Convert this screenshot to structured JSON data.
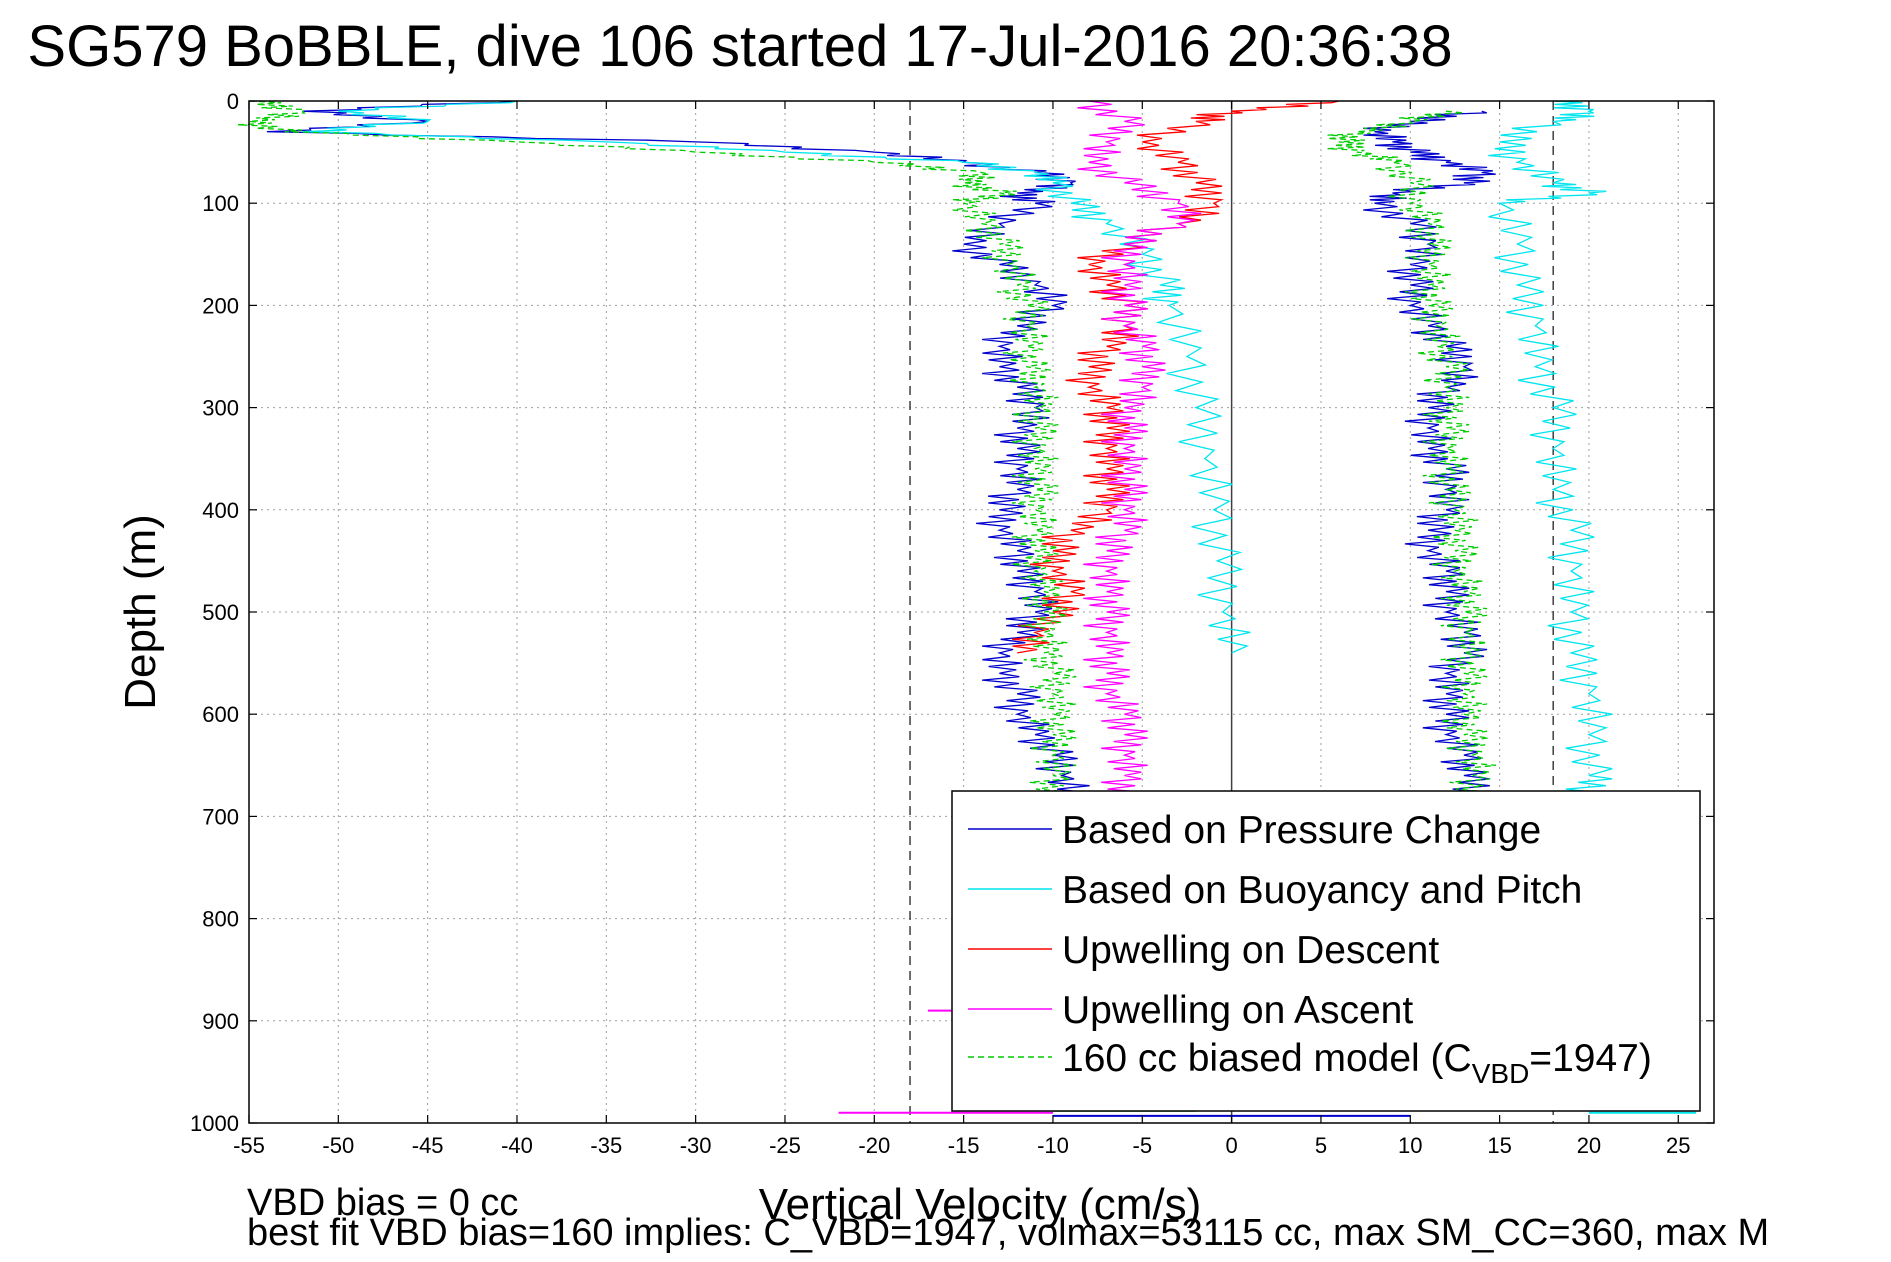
{
  "chart_data": {
    "type": "line",
    "title": "SG579 BoBBLE, dive 106 started 17-Jul-2016 20:36:38",
    "xlabel": "Vertical Velocity (cm/s)",
    "ylabel": "Depth (m)",
    "xlim": [
      -55,
      27
    ],
    "ylim": [
      1000,
      0
    ],
    "y_reversed": true,
    "grid": true,
    "xticks": [
      -55,
      -50,
      -45,
      -40,
      -35,
      -30,
      -25,
      -20,
      -15,
      -10,
      -5,
      0,
      5,
      10,
      15,
      20,
      25
    ],
    "yticks": [
      0,
      100,
      200,
      300,
      400,
      500,
      600,
      700,
      800,
      900,
      1000
    ],
    "legend_position": "bottom-right",
    "reference_lines": [
      -18,
      0,
      18
    ],
    "series": [
      {
        "name": "Based on Pressure Change",
        "color": "#0000cc",
        "style": "solid",
        "segments": [
          {
            "depth": [
              0,
              10,
              20,
              30,
              40,
              50,
              60,
              70,
              80,
              90,
              100,
              120,
              140,
              160,
              180,
              200,
              220,
              240,
              260,
              280,
              300,
              320,
              340,
              360,
              380,
              400,
              420,
              440,
              460,
              480,
              500,
              520,
              540,
              560,
              580,
              600,
              620,
              640,
              660,
              680
            ],
            "velocity": [
              -40,
              -52,
              -45,
              -54,
              -30,
              -20,
              -15,
              -11,
              -9,
              -12,
              -11,
              -13,
              -15,
              -13,
              -11,
              -10,
              -12,
              -13,
              -13,
              -12,
              -11,
              -12,
              -12,
              -12,
              -12,
              -13,
              -13,
              -12,
              -12,
              -11,
              -11,
              -12,
              -13,
              -13,
              -12,
              -12,
              -11,
              -10,
              -9.5,
              -9
            ]
          },
          {
            "depth": [
              10,
              20,
              30,
              40,
              50,
              60,
              70,
              80,
              90,
              100,
              120,
              140,
              160,
              180,
              200,
              220,
              240,
              260,
              280,
              300,
              320,
              340,
              360,
              380,
              400,
              420,
              440,
              460,
              480,
              500,
              520,
              540,
              560,
              580,
              600,
              620,
              640,
              660,
              680
            ],
            "velocity": [
              14,
              10,
              8,
              9,
              10,
              12,
              14,
              13,
              9,
              8,
              10,
              11,
              10,
              10,
              10,
              11,
              12,
              13,
              12,
              11,
              11,
              11,
              12,
              12,
              12,
              11,
              11,
              12,
              12,
              12,
              13,
              13,
              12,
              12,
              12,
              12,
              13,
              13,
              14
            ]
          }
        ]
      },
      {
        "name": "Based on Buoyancy and Pitch",
        "color": "#00e5ee",
        "style": "solid",
        "segments": [
          {
            "depth": [
              0,
              10,
              20,
              30,
              40,
              50,
              60,
              70,
              80,
              100,
              120,
              150,
              180,
              200,
              250,
              300,
              350,
              400,
              450,
              500,
              540
            ],
            "velocity": [
              -40,
              -50,
              -45,
              -52,
              -35,
              -25,
              -15,
              -11,
              -10,
              -9,
              -7,
              -5,
              -4,
              -3.5,
              -2.5,
              -2,
              -1.5,
              -1,
              -0.8,
              -0.5,
              0
            ]
          },
          {
            "depth": [
              0,
              10,
              20,
              40,
              60,
              80,
              90,
              100,
              140,
              180,
              220,
              260,
              300,
              340,
              380,
              420,
              460,
              500,
              540,
              580,
              620,
              660,
              680
            ],
            "velocity": [
              18,
              20,
              18,
              15,
              16,
              18,
              20,
              15,
              16,
              16,
              17,
              17,
              18,
              18,
              18,
              19,
              19,
              19,
              19,
              20,
              20,
              20,
              20
            ]
          }
        ]
      },
      {
        "name": "Upwelling on Descent",
        "color": "#ff0000",
        "style": "solid",
        "segments": [
          {
            "depth": [
              0,
              10,
              20,
              40,
              60,
              80,
              100,
              120,
              140,
              160,
              180,
              200,
              220,
              240,
              260,
              280,
              300,
              320,
              340,
              360,
              380,
              400,
              420,
              440,
              460,
              480,
              500,
              520,
              540
            ],
            "velocity": [
              6,
              0,
              -2,
              -5,
              -3,
              -2,
              -1,
              -3,
              -6,
              -8,
              -7,
              -6,
              -6,
              -7,
              -8,
              -8,
              -7,
              -7,
              -7,
              -7,
              -7,
              -7,
              -9,
              -10,
              -10,
              -9,
              -10,
              -11,
              -12
            ]
          }
        ]
      },
      {
        "name": "Upwelling on Ascent",
        "color": "#ff00ff",
        "style": "solid",
        "segments": [
          {
            "depth": [
              0,
              20,
              40,
              60,
              80,
              100,
              120,
              140,
              160,
              180,
              200,
              220,
              240,
              260,
              280,
              300,
              320,
              340,
              360,
              380,
              400,
              420,
              440,
              460,
              480,
              500,
              520,
              540,
              560,
              580,
              600,
              620,
              640,
              660,
              680
            ],
            "velocity": [
              -8,
              -6,
              -7,
              -8,
              -6,
              -3,
              -3,
              -6,
              -6,
              -6,
              -6,
              -6,
              -5,
              -5,
              -5,
              -6,
              -6,
              -6,
              -6,
              -6,
              -6,
              -6,
              -7,
              -7,
              -7,
              -7,
              -7,
              -7,
              -7,
              -7,
              -6,
              -6,
              -6,
              -6,
              -6
            ]
          }
        ]
      },
      {
        "name": "160 cc biased model (C_VBD=1947)",
        "legend_label": {
          "base": "160 cc biased model (C",
          "sub": "VBD",
          "tail": "=1947)"
        },
        "color": "#00cc00",
        "style": "dashed",
        "segments": [
          {
            "depth": [
              0,
              10,
              20,
              30,
              40,
              50,
              60,
              70,
              80,
              90,
              100,
              120,
              140,
              160,
              180,
              200,
              220,
              240,
              260,
              280,
              300,
              320,
              340,
              360,
              380,
              400,
              420,
              440,
              460,
              480,
              500,
              520,
              540,
              560,
              580,
              600,
              620,
              640,
              660,
              680
            ],
            "velocity": [
              -55,
              -52,
              -55,
              -53,
              -40,
              -30,
              -20,
              -14,
              -15,
              -13,
              -15,
              -14,
              -13,
              -12.5,
              -12,
              -11.5,
              -11.5,
              -11.5,
              -11.5,
              -11,
              -11,
              -11,
              -11,
              -11,
              -11,
              -11,
              -11,
              -11,
              -11,
              -10.5,
              -10.5,
              -10.5,
              -10.5,
              -10,
              -10,
              -10,
              -10,
              -10,
              -10,
              -10
            ]
          },
          {
            "depth": [
              10,
              20,
              30,
              40,
              50,
              60,
              80,
              100,
              120,
              140,
              160,
              180,
              200,
              220,
              240,
              260,
              280,
              300,
              320,
              340,
              360,
              380,
              400,
              420,
              440,
              460,
              480,
              500,
              520,
              540,
              560,
              580,
              600,
              620,
              640,
              660,
              680
            ],
            "velocity": [
              12,
              10,
              7,
              6,
              7,
              9,
              10,
              10,
              11,
              11,
              11,
              11,
              11,
              11.5,
              11.5,
              12,
              12,
              12,
              12,
              12,
              12,
              12,
              12.5,
              12.5,
              12.5,
              12.5,
              13,
              13,
              13,
              13,
              13,
              13,
              13,
              13,
              13.5,
              13.5,
              13.5
            ]
          }
        ]
      }
    ],
    "bottom_markers": [
      {
        "depth": 990,
        "velocity": [
          -22,
          -10
        ],
        "color": "#ff00ff"
      },
      {
        "depth": 993,
        "velocity": [
          -10,
          10
        ],
        "color": "#0000cc"
      },
      {
        "depth": 988,
        "velocity": [
          -10,
          -2
        ],
        "color": "#00cc00"
      },
      {
        "depth": 990,
        "velocity": [
          20,
          26
        ],
        "color": "#00e5ee"
      },
      {
        "depth": 890,
        "velocity": [
          -17,
          -15
        ],
        "color": "#ff00ff"
      }
    ],
    "annotations": [
      "VBD bias = 0 cc",
      "best fit VBD bias=160 implies: C_VBD=1947, volmax=53115 cc, max SM_CC=360, max M"
    ]
  }
}
